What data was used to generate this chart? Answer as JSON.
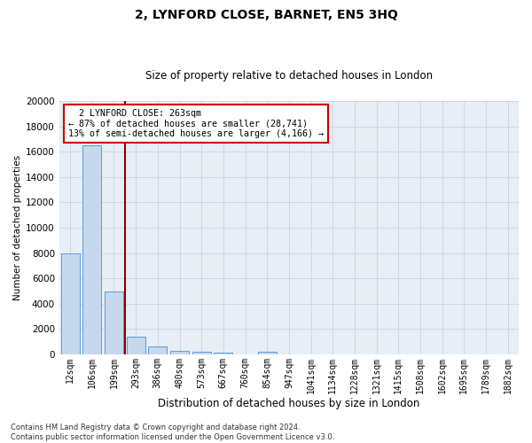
{
  "title": "2, LYNFORD CLOSE, BARNET, EN5 3HQ",
  "subtitle": "Size of property relative to detached houses in London",
  "xlabel": "Distribution of detached houses by size in London",
  "ylabel": "Number of detached properties",
  "footnote1": "Contains HM Land Registry data © Crown copyright and database right 2024.",
  "footnote2": "Contains public sector information licensed under the Open Government Licence v3.0.",
  "annotation_line1": "  2 LYNFORD CLOSE: 263sqm",
  "annotation_line2": "← 87% of detached houses are smaller (28,741)",
  "annotation_line3": "13% of semi-detached houses are larger (4,166) →",
  "bar_color": "#c5d8ee",
  "bar_edge_color": "#5b9bd5",
  "vline_color": "#8b0000",
  "background_color": "#e8eef5",
  "grid_color": "#c8d4e0",
  "categories": [
    "12sqm",
    "106sqm",
    "199sqm",
    "293sqm",
    "386sqm",
    "480sqm",
    "573sqm",
    "667sqm",
    "760sqm",
    "854sqm",
    "947sqm",
    "1041sqm",
    "1134sqm",
    "1228sqm",
    "1321sqm",
    "1415sqm",
    "1508sqm",
    "1602sqm",
    "1695sqm",
    "1789sqm",
    "1882sqm"
  ],
  "values": [
    8000,
    16500,
    5000,
    1400,
    600,
    300,
    200,
    150,
    0,
    200,
    0,
    0,
    0,
    0,
    0,
    0,
    0,
    0,
    0,
    0,
    0
  ],
  "vline_pos": 2.5,
  "ylim": [
    0,
    20000
  ],
  "yticks": [
    0,
    2000,
    4000,
    6000,
    8000,
    10000,
    12000,
    14000,
    16000,
    18000,
    20000
  ],
  "annotation_bbox_facecolor": "white",
  "annotation_bbox_edgecolor": "#cc0000",
  "title_fontsize": 10,
  "subtitle_fontsize": 8.5
}
